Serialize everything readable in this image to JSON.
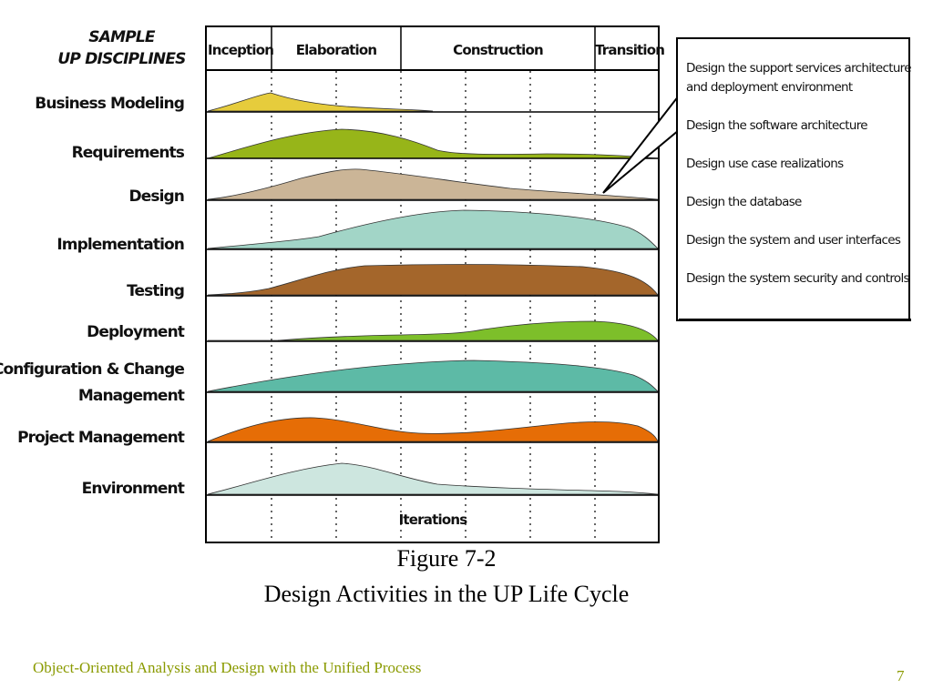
{
  "header": {
    "line1": "SAMPLE",
    "line2": "UP DISCIPLINES"
  },
  "phases": [
    "Inception",
    "Elaboration",
    "Construction",
    "Transition"
  ],
  "disciplines": [
    {
      "label": "Business Modeling",
      "color": "#e6cc3c"
    },
    {
      "label": "Requirements",
      "color": "#97b519"
    },
    {
      "label": "Design",
      "color": "#cbb597"
    },
    {
      "label": "Implementation",
      "color": "#a2d5c7"
    },
    {
      "label": "Testing",
      "color": "#a4662b"
    },
    {
      "label": "Deployment",
      "color": "#7dbf2a"
    },
    {
      "label": "Configuration & Change",
      "label2": "Management",
      "color": "#5dbaa6"
    },
    {
      "label": "Project Management",
      "color": "#e66d06"
    },
    {
      "label": "Environment",
      "color": "#cde6df"
    }
  ],
  "iterations_label": "Iterations",
  "design_activities": [
    "Design the support services architecture",
    "and deployment environment",
    "Design the software architecture",
    "Design use case realizations",
    "Design the database",
    "Design the system and user interfaces",
    "Design the system security and controls"
  ],
  "caption": {
    "line1": "Figure 7-2",
    "line2": "Design Activities in the UP Life Cycle"
  },
  "footer": {
    "text": "Object-Oriented Analysis and Design with the Unified Process",
    "page_number": "7"
  }
}
